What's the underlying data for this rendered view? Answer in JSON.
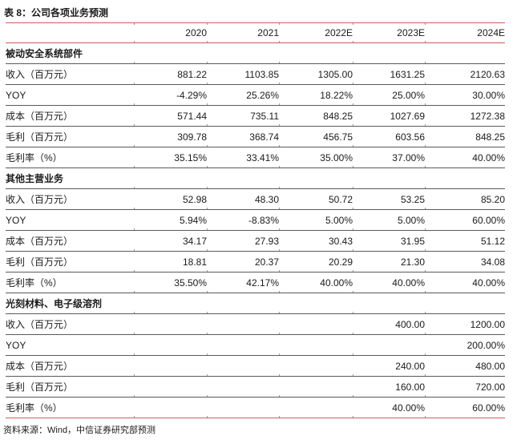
{
  "page": {
    "title": "表 8：公司各项业务预测",
    "source_note": "资料来源：Wind，中信证券研究部预测"
  },
  "colors": {
    "accent_red": "#cf5b5b",
    "grid_gray": "#5a5a5a",
    "tick_gray": "#9a9a9a",
    "text": "#1a1a1a"
  },
  "table": {
    "header": [
      "2020",
      "2021",
      "2022E",
      "2023E",
      "2024E"
    ],
    "sections": [
      {
        "name": "被动安全系统部件",
        "rows": [
          {
            "label": "收入（百万元）",
            "values": [
              "881.22",
              "1103.85",
              "1305.00",
              "1631.25",
              "2120.63"
            ]
          },
          {
            "label": "YOY",
            "values": [
              "-4.29%",
              "25.26%",
              "18.22%",
              "25.00%",
              "30.00%"
            ]
          },
          {
            "label": "成本（百万元）",
            "values": [
              "571.44",
              "735.11",
              "848.25",
              "1027.69",
              "1272.38"
            ]
          },
          {
            "label": "毛利（百万元）",
            "values": [
              "309.78",
              "368.74",
              "456.75",
              "603.56",
              "848.25"
            ]
          },
          {
            "label": "毛利率（%）",
            "values": [
              "35.15%",
              "33.41%",
              "35.00%",
              "37.00%",
              "40.00%"
            ]
          }
        ]
      },
      {
        "name": "其他主营业务",
        "rows": [
          {
            "label": "收入（百万元）",
            "values": [
              "52.98",
              "48.30",
              "50.72",
              "53.25",
              "85.20"
            ]
          },
          {
            "label": "YOY",
            "values": [
              "5.94%",
              "-8.83%",
              "5.00%",
              "5.00%",
              "60.00%"
            ]
          },
          {
            "label": "成本（百万元）",
            "values": [
              "34.17",
              "27.93",
              "30.43",
              "31.95",
              "51.12"
            ]
          },
          {
            "label": "毛利（百万元）",
            "values": [
              "18.81",
              "20.37",
              "20.29",
              "21.30",
              "34.08"
            ]
          },
          {
            "label": "毛利率（%）",
            "values": [
              "35.50%",
              "42.17%",
              "40.00%",
              "40.00%",
              "40.00%"
            ]
          }
        ]
      },
      {
        "name": "光刻材料、电子级溶剂",
        "rows": [
          {
            "label": "收入（百万元）",
            "values": [
              "",
              "",
              "",
              "400.00",
              "1200.00"
            ]
          },
          {
            "label": "YOY",
            "values": [
              "",
              "",
              "",
              "",
              "200.00%"
            ]
          },
          {
            "label": "成本（百万元）",
            "values": [
              "",
              "",
              "",
              "240.00",
              "480.00"
            ]
          },
          {
            "label": "毛利（百万元）",
            "values": [
              "",
              "",
              "",
              "160.00",
              "720.00"
            ]
          },
          {
            "label": "毛利率（%）",
            "values": [
              "",
              "",
              "",
              "40.00%",
              "60.00%"
            ]
          }
        ]
      }
    ]
  }
}
